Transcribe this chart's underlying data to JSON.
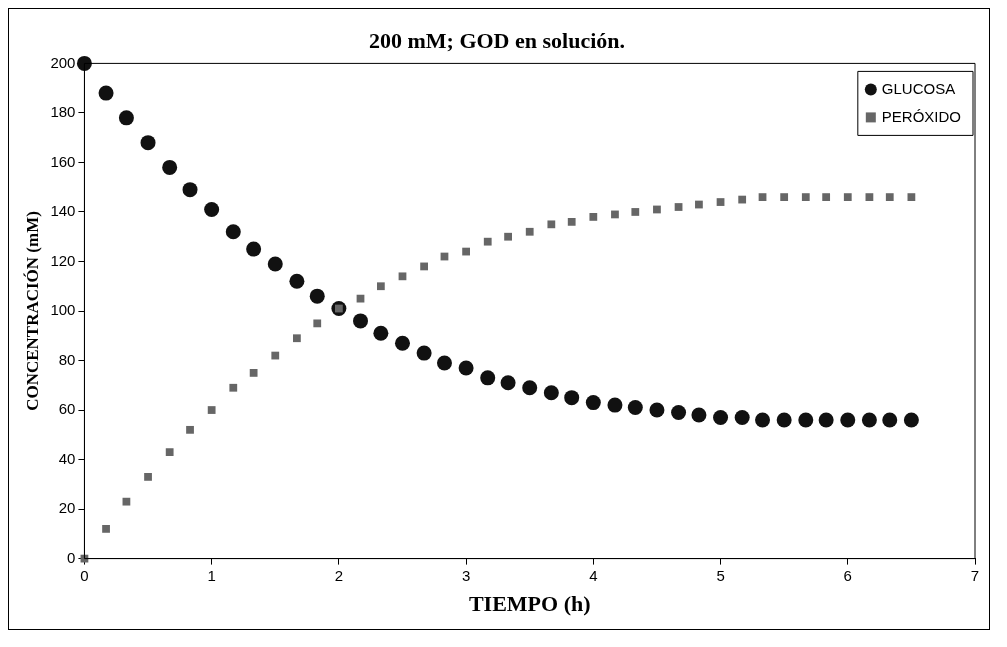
{
  "chart_data": {
    "type": "scatter",
    "title": "200 mM; GOD en solución.",
    "xlabel": "TIEMPO (h)",
    "ylabel": "CONCENTRACIÓN (mM)",
    "x": [
      0,
      0.17,
      0.33,
      0.5,
      0.67,
      0.83,
      1,
      1.17,
      1.33,
      1.5,
      1.67,
      1.83,
      2,
      2.17,
      2.33,
      2.5,
      2.67,
      2.83,
      3,
      3.17,
      3.33,
      3.5,
      3.67,
      3.83,
      4,
      4.17,
      4.33,
      4.5,
      4.67,
      4.83,
      5,
      5.17,
      5.33,
      5.5,
      5.67,
      5.83,
      6,
      6.17,
      6.33,
      6.5
    ],
    "series": [
      {
        "name": "GLUCOSA",
        "color": "#111111",
        "marker": "circle",
        "values": [
          200,
          188,
          178,
          168,
          158,
          149,
          141,
          132,
          125,
          119,
          112,
          106,
          101,
          96,
          91,
          87,
          83,
          79,
          77,
          73,
          71,
          69,
          67,
          65,
          63,
          62,
          61,
          60,
          59,
          58,
          57,
          57,
          56,
          56,
          56,
          56,
          56,
          56,
          56,
          56
        ]
      },
      {
        "name": "PERÓXIDO",
        "color": "#666666",
        "marker": "square",
        "values": [
          0,
          12,
          23,
          33,
          43,
          52,
          60,
          69,
          75,
          82,
          89,
          95,
          101,
          105,
          110,
          114,
          118,
          122,
          124,
          128,
          130,
          132,
          135,
          136,
          138,
          139,
          140,
          141,
          142,
          143,
          144,
          145,
          146,
          146,
          146,
          146,
          146,
          146,
          146,
          146
        ]
      }
    ],
    "xlim": [
      0,
      7
    ],
    "xticks": [
      0,
      1,
      2,
      3,
      4,
      5,
      6,
      7
    ],
    "ylim": [
      0,
      200
    ],
    "yticks": [
      0,
      20,
      40,
      60,
      80,
      100,
      120,
      140,
      160,
      180,
      200
    ],
    "grid": false,
    "legend": "top right"
  }
}
